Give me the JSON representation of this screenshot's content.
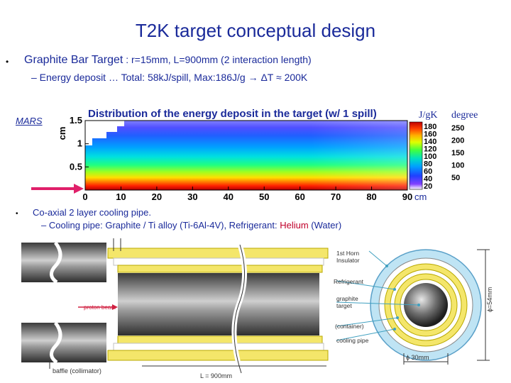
{
  "title": "T2K target conceptual design",
  "bullet1": {
    "bold": "Graphite Bar Target",
    "rest": " : r=15mm, L=900mm (2 interaction length)",
    "sub": "– Energy deposit … Total: 58kJ/spill, Max:186J/g → ΔT ≈ 200K"
  },
  "mars_label": "MARS",
  "chart_data": {
    "type": "heatmap",
    "title": "Distribution of the energy deposit in the target (w/ 1 spill)",
    "ylabel": "cm",
    "xlabel": "cm",
    "xlim": [
      0,
      90
    ],
    "ylim": [
      0,
      1.5
    ],
    "x_ticks": [
      "0",
      "10",
      "20",
      "30",
      "40",
      "50",
      "60",
      "70",
      "80",
      "90"
    ],
    "y_ticks": [
      "0.5",
      "1",
      "1.5"
    ],
    "colorbar_ticks": [
      "20",
      "40",
      "60",
      "80",
      "100",
      "120",
      "140",
      "160",
      "180"
    ],
    "colorbar_unit": "J/gK",
    "degree_unit": "degree",
    "degree_ticks": [
      "250",
      "200",
      "150",
      "100",
      "50"
    ],
    "colors": {
      "high": "#c80000",
      "mid": "#ffe000",
      "low": "#1040ff",
      "zero": "#ffffff",
      "arrow": "#e0206a"
    }
  },
  "bullet2": {
    "text": "Co-axial 2 layer cooling pipe.",
    "sub_prefix": "– Cooling pipe: Graphite / Ti alloy (Ti-6Al-4V), Refrigerant: ",
    "sub_helium": "Helium",
    "sub_suffix": " (Water)"
  },
  "diagram": {
    "labels": {
      "horn": "1st Horn",
      "insulator": "Insulator",
      "refrigerant": "Refrigerant",
      "graphite": "graphite",
      "target": "target",
      "container": "(container)",
      "cooling_pipe": "cooling pipe",
      "proton_beam": "proton beam",
      "baffle": "baffle (collimator)",
      "length": "L = 900mm",
      "diameter": "ϕ=54mm",
      "inner_diameter": "ϕ 30mm"
    }
  }
}
